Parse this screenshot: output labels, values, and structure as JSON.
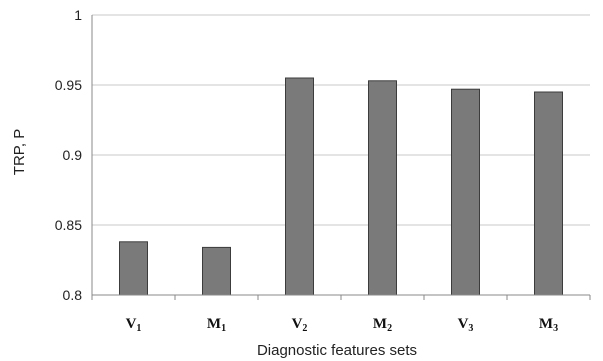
{
  "chart_data": {
    "type": "bar",
    "categories": [
      {
        "base": "V",
        "sub": "1"
      },
      {
        "base": "M",
        "sub": "1"
      },
      {
        "base": "V",
        "sub": "2"
      },
      {
        "base": "M",
        "sub": "2"
      },
      {
        "base": "V",
        "sub": "3"
      },
      {
        "base": "M",
        "sub": "3"
      }
    ],
    "values": [
      0.838,
      0.834,
      0.955,
      0.953,
      0.947,
      0.945
    ],
    "xlabel": "Diagnostic features sets",
    "ylabel": "TRP, P",
    "ylim": [
      0.8,
      1
    ],
    "yticks": [
      "0.8",
      "0.85",
      "0.9",
      "0.95",
      "1"
    ],
    "grid": true,
    "bar_color": "#7a7a7a",
    "bar_edge_color": "#3c3c3c",
    "grid_color": "#c8c8c8"
  }
}
